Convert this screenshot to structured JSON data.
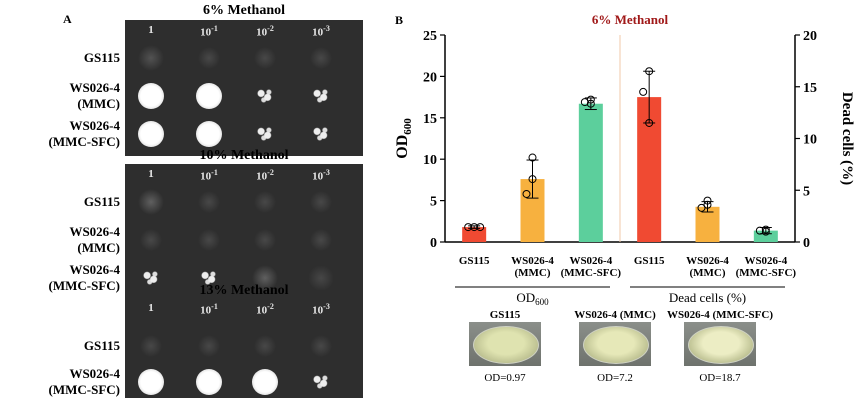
{
  "panel_a": {
    "letter": "A",
    "dilutions": [
      "1",
      "10",
      "-1",
      "10",
      "-2",
      "10",
      "-3"
    ],
    "plates": [
      {
        "title": "6% Methanol",
        "rows": [
          {
            "strain_line1": "GS115",
            "strain_line2": "",
            "growth": [
              0.15,
              0.05,
              0.03,
              0.02
            ]
          },
          {
            "strain_line1": "WS026-4",
            "strain_line2": "(MMC)",
            "growth": [
              1.0,
              0.95,
              0.7,
              0.45
            ]
          },
          {
            "strain_line1": "WS026-4",
            "strain_line2": "(MMC-SFC)",
            "growth": [
              1.0,
              1.0,
              0.85,
              0.7
            ]
          }
        ]
      },
      {
        "title": "10% Methanol",
        "rows": [
          {
            "strain_line1": "GS115",
            "strain_line2": "",
            "growth": [
              0.2,
              0.05,
              0.03,
              0.02
            ]
          },
          {
            "strain_line1": "WS026-4",
            "strain_line2": "(MMC)",
            "growth": [
              0.05,
              0.03,
              0.02,
              0.02
            ]
          },
          {
            "strain_line1": "WS026-4",
            "strain_line2": "(MMC-SFC)",
            "growth": [
              0.85,
              0.55,
              0.2,
              0.1
            ]
          }
        ]
      },
      {
        "title": "13% Methanol",
        "rows": [
          {
            "strain_line1": "GS115",
            "strain_line2": "",
            "growth": [
              0.05,
              0.03,
              0.02,
              0.02
            ]
          },
          {
            "strain_line1": "WS026-4",
            "strain_line2": "(MMC-SFC)",
            "growth": [
              1.0,
              0.95,
              0.9,
              0.8
            ]
          }
        ]
      }
    ]
  },
  "chart_data": {
    "type": "bar",
    "panel_letter": "B",
    "title": "6% Methanol",
    "ylabel_left": "OD",
    "ylabel_left_sub": "600",
    "ylabel_right": "Dead cells (%)",
    "ylim_left": [
      0,
      25
    ],
    "ylim_right": [
      0,
      20
    ],
    "yticks_left": [
      0,
      5,
      10,
      15,
      20,
      25
    ],
    "yticks_right": [
      0,
      5,
      10,
      15,
      20
    ],
    "groups": [
      {
        "label": "OD",
        "label_sub": "600",
        "axis": "left",
        "categories": [
          {
            "line1": "GS115",
            "line2": ""
          },
          {
            "line1": "WS026-4",
            "line2": "(MMC)"
          },
          {
            "line1": "WS026-4",
            "line2": "(MMC-SFC)"
          }
        ],
        "values": [
          1.8,
          7.6,
          16.7
        ],
        "errors": [
          0.15,
          2.3,
          0.7
        ],
        "points": [
          [
            1.8,
            1.8,
            1.8
          ],
          [
            7.6,
            5.8,
            10.2
          ],
          [
            16.7,
            16.9,
            17.2
          ]
        ],
        "colors": [
          "#f04a32",
          "#f7b13f",
          "#5ccf9c"
        ]
      },
      {
        "label": "Dead cells (%)",
        "label_sub": "",
        "axis": "right",
        "categories": [
          {
            "line1": "GS115",
            "line2": ""
          },
          {
            "line1": "WS026-4",
            "line2": "(MMC)"
          },
          {
            "line1": "WS026-4",
            "line2": "(MMC-SFC)"
          }
        ],
        "values": [
          14.0,
          3.4,
          1.1
        ],
        "errors": [
          2.5,
          0.5,
          0.3
        ],
        "points": [
          [
            16.5,
            14.5,
            11.5
          ],
          [
            3.6,
            3.3,
            4.0
          ],
          [
            1.0,
            1.1,
            1.2
          ]
        ],
        "colors": [
          "#f04a32",
          "#f7b13f",
          "#5ccf9c"
        ]
      }
    ]
  },
  "photos": [
    {
      "title": "GS115",
      "od_text": "OD=0.97",
      "tint": "#dfe3b0"
    },
    {
      "title": "WS026-4 (MMC)",
      "od_text": "OD=7.2",
      "tint": "#e6e8b8"
    },
    {
      "title": "WS026-4 (MMC-SFC)",
      "od_text": "OD=18.7",
      "tint": "#ecedc4"
    }
  ]
}
